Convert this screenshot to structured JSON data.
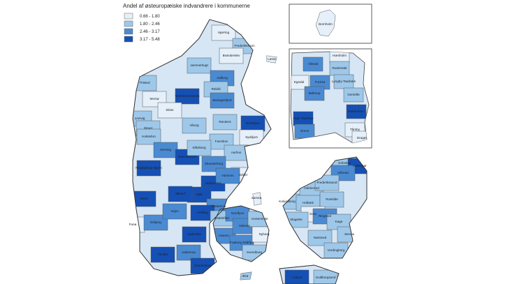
{
  "title": "Andel af østeuropæiske indvandrere i kommunerne",
  "legend": [
    {
      "label": "0.66 - 1.80",
      "color": "#e6f0fa"
    },
    {
      "label": "1.80 - 2.46",
      "color": "#9ec8ea"
    },
    {
      "label": "2.46 - 3.17",
      "color": "#4a8ad2"
    },
    {
      "label": "3.17 - 5.48",
      "color": "#1550b5"
    }
  ],
  "municipalities": [
    {
      "name": "Hjørring",
      "color": "#e6f0fa"
    },
    {
      "name": "Frederikshavn",
      "color": "#9ec8ea"
    },
    {
      "name": "Læsø",
      "color": "#e6f0fa"
    },
    {
      "name": "Brønderslev",
      "color": "#e6f0fa"
    },
    {
      "name": "Jammerbugt",
      "color": "#9ec8ea"
    },
    {
      "name": "Thisted",
      "color": "#9ec8ea"
    },
    {
      "name": "Aalborg",
      "color": "#4a8ad2"
    },
    {
      "name": "Vesthimmerlands",
      "color": "#1550b5"
    },
    {
      "name": "Rebild",
      "color": "#9ec8ea"
    },
    {
      "name": "Morsø",
      "color": "#e6f0fa"
    },
    {
      "name": "Mariagerfjord",
      "color": "#4a8ad2"
    },
    {
      "name": "Skive",
      "color": "#e6f0fa"
    },
    {
      "name": "Lemvig",
      "color": "#9ec8ea"
    },
    {
      "name": "Viborg",
      "color": "#9ec8ea"
    },
    {
      "name": "Randers",
      "color": "#9ec8ea"
    },
    {
      "name": "Norddjurs",
      "color": "#1550b5"
    },
    {
      "name": "Struer",
      "color": "#9ec8ea"
    },
    {
      "name": "Holstebro",
      "color": "#9ec8ea"
    },
    {
      "name": "Syddjurs",
      "color": "#e6f0fa"
    },
    {
      "name": "Favrskov",
      "color": "#9ec8ea"
    },
    {
      "name": "Herning",
      "color": "#4a8ad2"
    },
    {
      "name": "Ikast-Brande",
      "color": "#1550b5"
    },
    {
      "name": "Silkeborg",
      "color": "#9ec8ea"
    },
    {
      "name": "Aarhus",
      "color": "#9ec8ea"
    },
    {
      "name": "Skanderborg",
      "color": "#4a8ad2"
    },
    {
      "name": "Ringkøbing-Skjern",
      "color": "#1550b5"
    },
    {
      "name": "Odder",
      "color": "#e6f0fa"
    },
    {
      "name": "Samsø",
      "color": "#e6f0fa"
    },
    {
      "name": "Hedensted",
      "color": "#1550b5"
    },
    {
      "name": "Horsens",
      "color": "#4a8ad2"
    },
    {
      "name": "Vejle",
      "color": "#1550b5"
    },
    {
      "name": "Billund",
      "color": "#1550b5"
    },
    {
      "name": "Varde",
      "color": "#1550b5"
    },
    {
      "name": "Fredericia",
      "color": "#4a8ad2"
    },
    {
      "name": "Kolding",
      "color": "#1550b5"
    },
    {
      "name": "Fanø",
      "color": "#e6f0fa"
    },
    {
      "name": "Esbjerg",
      "color": "#4a8ad2"
    },
    {
      "name": "Vejen",
      "color": "#4a8ad2"
    },
    {
      "name": "Middelfart",
      "color": "#9ec8ea"
    },
    {
      "name": "Assens",
      "color": "#4a8ad2"
    },
    {
      "name": "Nordfyns",
      "color": "#4a8ad2"
    },
    {
      "name": "Odense",
      "color": "#4a8ad2"
    },
    {
      "name": "Kerteminde",
      "color": "#9ec8ea"
    },
    {
      "name": "Faaborg-Midtfyn",
      "color": "#4a8ad2"
    },
    {
      "name": "Nyborg",
      "color": "#e6f0fa"
    },
    {
      "name": "Svendborg",
      "color": "#9ec8ea"
    },
    {
      "name": "Haderslev",
      "color": "#1550b5"
    },
    {
      "name": "Tønder",
      "color": "#1550b5"
    },
    {
      "name": "Aabenraa",
      "color": "#4a8ad2"
    },
    {
      "name": "Sønderborg",
      "color": "#1550b5"
    },
    {
      "name": "Ærø",
      "color": "#9ec8ea"
    },
    {
      "name": "Odsherred",
      "color": "#9ec8ea"
    },
    {
      "name": "Gribskov",
      "color": "#9ec8ea"
    },
    {
      "name": "Helsingør",
      "color": "#1550b5"
    },
    {
      "name": "Hillerød",
      "color": "#4a8ad2"
    },
    {
      "name": "Frederikssund",
      "color": "#9ec8ea"
    },
    {
      "name": "Kalundborg",
      "color": "#9ec8ea"
    },
    {
      "name": "Holbæk",
      "color": "#9ec8ea"
    },
    {
      "name": "Roskilde",
      "color": "#9ec8ea"
    },
    {
      "name": "Sorø",
      "color": "#e6f0fa"
    },
    {
      "name": "Ringsted",
      "color": "#4a8ad2"
    },
    {
      "name": "Slagelse",
      "color": "#9ec8ea"
    },
    {
      "name": "Køge",
      "color": "#9ec8ea"
    },
    {
      "name": "Stevns",
      "color": "#9ec8ea"
    },
    {
      "name": "Næstved",
      "color": "#9ec8ea"
    },
    {
      "name": "Vordingborg",
      "color": "#9ec8ea"
    },
    {
      "name": "Lolland",
      "color": "#1550b5"
    },
    {
      "name": "Guldborgsund",
      "color": "#9ec8ea"
    }
  ],
  "bornholm_inset": [
    {
      "name": "Bornholm",
      "color": "#e6f0fa"
    }
  ],
  "copenhagen_inset": [
    {
      "name": "Hørsholm",
      "color": "#e6f0fa"
    },
    {
      "name": "Allerød",
      "color": "#4a8ad2"
    },
    {
      "name": "Rudersdal",
      "color": "#9ec8ea"
    },
    {
      "name": "Egedal",
      "color": "#e6f0fa"
    },
    {
      "name": "Furesø",
      "color": "#4a8ad2"
    },
    {
      "name": "Lyngby-Taarbæk",
      "color": "#9ec8ea"
    },
    {
      "name": "Ballerup",
      "color": "#4a8ad2"
    },
    {
      "name": "Gentofte",
      "color": "#9ec8ea"
    },
    {
      "name": "Høje-Taastrup",
      "color": "#1550b5"
    },
    {
      "name": "København",
      "color": "#1550b5"
    },
    {
      "name": "Greve",
      "color": "#4a8ad2"
    },
    {
      "name": "Tårnby",
      "color": "#e6f0fa"
    },
    {
      "name": "Dragør",
      "color": "#e6f0fa"
    }
  ]
}
